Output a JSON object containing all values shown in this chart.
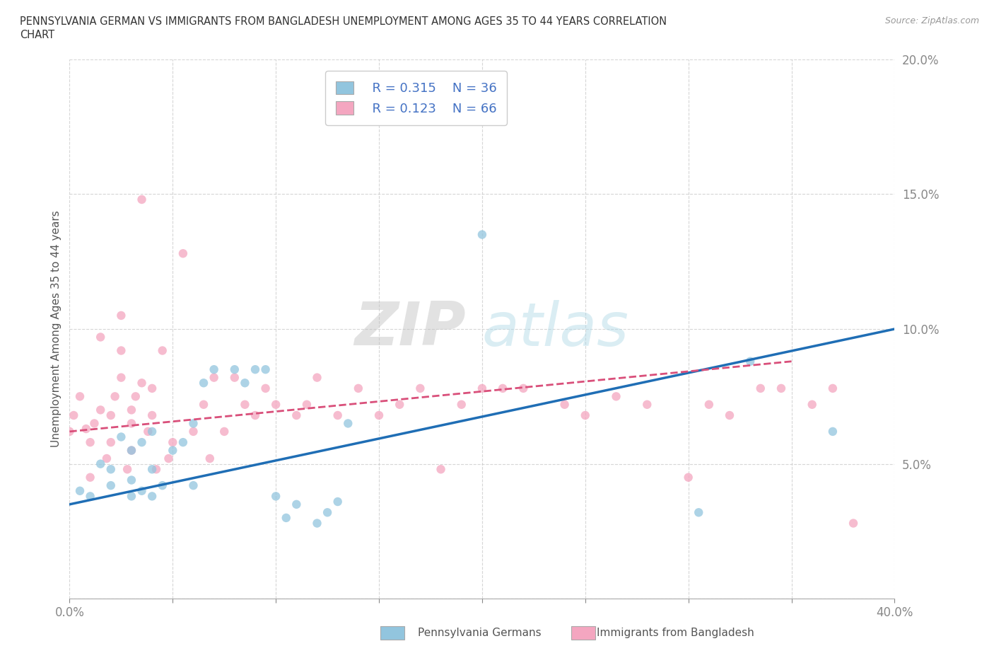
{
  "title_line1": "PENNSYLVANIA GERMAN VS IMMIGRANTS FROM BANGLADESH UNEMPLOYMENT AMONG AGES 35 TO 44 YEARS CORRELATION",
  "title_line2": "CHART",
  "source": "Source: ZipAtlas.com",
  "ylabel": "Unemployment Among Ages 35 to 44 years",
  "xlim": [
    0.0,
    0.4
  ],
  "ylim": [
    0.0,
    0.2
  ],
  "xticks": [
    0.0,
    0.05,
    0.1,
    0.15,
    0.2,
    0.25,
    0.3,
    0.35,
    0.4
  ],
  "yticks": [
    0.0,
    0.05,
    0.1,
    0.15,
    0.2
  ],
  "blue_color": "#92c5de",
  "pink_color": "#f4a6c0",
  "blue_line_color": "#1f6eb5",
  "pink_line_color": "#d94f7a",
  "watermark_zip": "ZIP",
  "watermark_atlas": "atlas",
  "legend_R_blue": "R = 0.315",
  "legend_N_blue": "N = 36",
  "legend_R_pink": "R = 0.123",
  "legend_N_pink": "N = 66",
  "blue_scatter_x": [
    0.005,
    0.01,
    0.015,
    0.02,
    0.02,
    0.025,
    0.03,
    0.03,
    0.03,
    0.035,
    0.035,
    0.04,
    0.04,
    0.04,
    0.045,
    0.05,
    0.055,
    0.06,
    0.06,
    0.065,
    0.07,
    0.08,
    0.085,
    0.09,
    0.095,
    0.1,
    0.105,
    0.11,
    0.12,
    0.125,
    0.13,
    0.135,
    0.2,
    0.305,
    0.33,
    0.37
  ],
  "blue_scatter_y": [
    0.04,
    0.038,
    0.05,
    0.042,
    0.048,
    0.06,
    0.038,
    0.044,
    0.055,
    0.04,
    0.058,
    0.038,
    0.048,
    0.062,
    0.042,
    0.055,
    0.058,
    0.042,
    0.065,
    0.08,
    0.085,
    0.085,
    0.08,
    0.085,
    0.085,
    0.038,
    0.03,
    0.035,
    0.028,
    0.032,
    0.036,
    0.065,
    0.135,
    0.032,
    0.088,
    0.062
  ],
  "pink_scatter_x": [
    0.0,
    0.002,
    0.005,
    0.008,
    0.01,
    0.01,
    0.012,
    0.015,
    0.015,
    0.018,
    0.02,
    0.02,
    0.022,
    0.025,
    0.025,
    0.025,
    0.028,
    0.03,
    0.03,
    0.03,
    0.032,
    0.035,
    0.035,
    0.038,
    0.04,
    0.04,
    0.042,
    0.045,
    0.048,
    0.05,
    0.055,
    0.06,
    0.065,
    0.068,
    0.07,
    0.075,
    0.08,
    0.085,
    0.09,
    0.095,
    0.1,
    0.11,
    0.115,
    0.12,
    0.13,
    0.14,
    0.15,
    0.16,
    0.17,
    0.18,
    0.19,
    0.2,
    0.21,
    0.22,
    0.24,
    0.25,
    0.265,
    0.28,
    0.3,
    0.31,
    0.32,
    0.335,
    0.345,
    0.36,
    0.37,
    0.38
  ],
  "pink_scatter_y": [
    0.062,
    0.068,
    0.075,
    0.063,
    0.045,
    0.058,
    0.065,
    0.07,
    0.097,
    0.052,
    0.058,
    0.068,
    0.075,
    0.082,
    0.092,
    0.105,
    0.048,
    0.055,
    0.065,
    0.07,
    0.075,
    0.08,
    0.148,
    0.062,
    0.068,
    0.078,
    0.048,
    0.092,
    0.052,
    0.058,
    0.128,
    0.062,
    0.072,
    0.052,
    0.082,
    0.062,
    0.082,
    0.072,
    0.068,
    0.078,
    0.072,
    0.068,
    0.072,
    0.082,
    0.068,
    0.078,
    0.068,
    0.072,
    0.078,
    0.048,
    0.072,
    0.078,
    0.078,
    0.078,
    0.072,
    0.068,
    0.075,
    0.072,
    0.045,
    0.072,
    0.068,
    0.078,
    0.078,
    0.072,
    0.078,
    0.028
  ],
  "blue_trend_x": [
    0.0,
    0.4
  ],
  "blue_trend_y": [
    0.035,
    0.1
  ],
  "pink_trend_x": [
    0.0,
    0.35
  ],
  "pink_trend_y": [
    0.062,
    0.088
  ],
  "background_color": "#ffffff",
  "grid_color": "#cccccc",
  "title_color": "#333333",
  "axis_label_color": "#555555",
  "tick_color": "#4472c4"
}
